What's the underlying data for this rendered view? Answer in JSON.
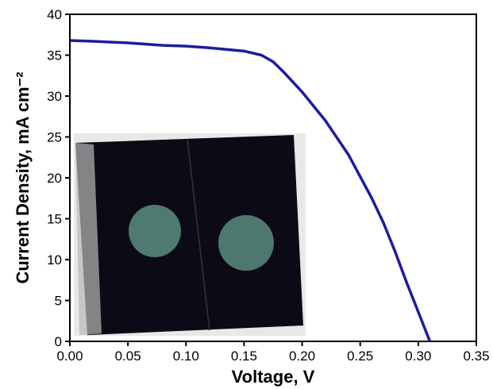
{
  "chart_data": {
    "type": "line",
    "x_label": "Voltage, V",
    "y_label": "Current Density, mA cm⁻²",
    "x": [
      0,
      0.02,
      0.05,
      0.08,
      0.1,
      0.12,
      0.15,
      0.165,
      0.175,
      0.185,
      0.2,
      0.22,
      0.24,
      0.26,
      0.27,
      0.28,
      0.29,
      0.3,
      0.31
    ],
    "values": [
      36.8,
      36.7,
      36.5,
      36.2,
      36.1,
      35.9,
      35.5,
      35.0,
      34.2,
      32.8,
      30.5,
      27.0,
      22.8,
      17.5,
      14.5,
      11.0,
      7.2,
      3.6,
      0
    ],
    "color": "#1c1c9e",
    "xlim": [
      0,
      0.35
    ],
    "xticks": [
      {
        "value": 0,
        "label": "0.00"
      },
      {
        "value": 0.05,
        "label": "0.05"
      },
      {
        "value": 0.1,
        "label": "0.10"
      },
      {
        "value": 0.15,
        "label": "0.15"
      },
      {
        "value": 0.2,
        "label": "0.20"
      },
      {
        "value": 0.25,
        "label": "0.25"
      },
      {
        "value": 0.3,
        "label": "0.30"
      },
      {
        "value": 0.35,
        "label": "0.35"
      }
    ],
    "ylim": [
      0,
      40
    ],
    "yticks": [
      0,
      5,
      10,
      15,
      20,
      25,
      30,
      35,
      40
    ]
  }
}
